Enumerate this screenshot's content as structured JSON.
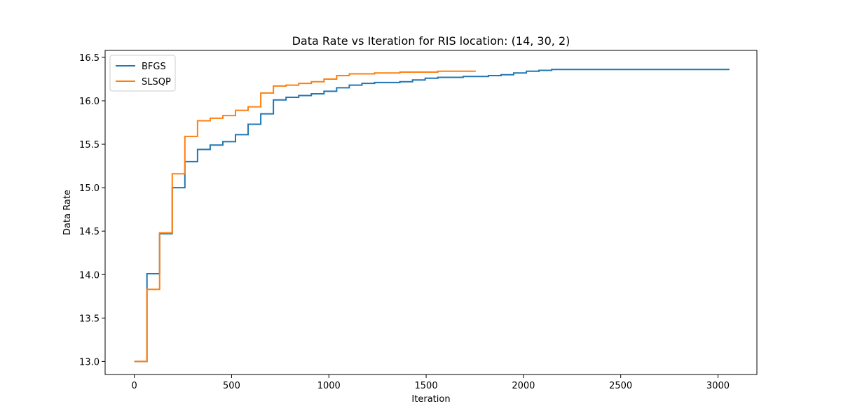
{
  "chart_data": {
    "type": "line",
    "title": "Data Rate vs Iteration for RIS location: (14, 30, 2)",
    "xlabel": "Iteration",
    "ylabel": "Data Rate",
    "xlim": [
      -150,
      3200
    ],
    "ylim": [
      12.85,
      16.58
    ],
    "xticks": [
      0,
      500,
      1000,
      1500,
      2000,
      2500,
      3000
    ],
    "yticks": [
      13.0,
      13.5,
      14.0,
      14.5,
      15.0,
      15.5,
      16.0,
      16.5
    ],
    "grid": false,
    "legend": "top-left",
    "step": "post",
    "series": [
      {
        "name": "BFGS",
        "color": "#1f77b4",
        "points": [
          [
            0,
            13.0
          ],
          [
            65,
            14.01
          ],
          [
            130,
            14.47
          ],
          [
            195,
            15.0
          ],
          [
            260,
            15.3
          ],
          [
            325,
            15.44
          ],
          [
            390,
            15.49
          ],
          [
            455,
            15.53
          ],
          [
            520,
            15.61
          ],
          [
            585,
            15.73
          ],
          [
            650,
            15.85
          ],
          [
            715,
            16.01
          ],
          [
            780,
            16.04
          ],
          [
            845,
            16.06
          ],
          [
            910,
            16.08
          ],
          [
            975,
            16.11
          ],
          [
            1040,
            16.15
          ],
          [
            1105,
            16.18
          ],
          [
            1170,
            16.2
          ],
          [
            1235,
            16.21
          ],
          [
            1300,
            16.21
          ],
          [
            1365,
            16.22
          ],
          [
            1430,
            16.24
          ],
          [
            1495,
            16.26
          ],
          [
            1560,
            16.27
          ],
          [
            1625,
            16.27
          ],
          [
            1690,
            16.28
          ],
          [
            1755,
            16.28
          ],
          [
            1820,
            16.29
          ],
          [
            1885,
            16.3
          ],
          [
            1950,
            16.32
          ],
          [
            2015,
            16.34
          ],
          [
            2080,
            16.35
          ],
          [
            2145,
            16.36
          ],
          [
            2500,
            16.36
          ],
          [
            3055,
            16.37
          ]
        ]
      },
      {
        "name": "SLSQP",
        "color": "#ff7f0e",
        "points": [
          [
            0,
            13.0
          ],
          [
            65,
            13.83
          ],
          [
            130,
            14.48
          ],
          [
            195,
            15.16
          ],
          [
            260,
            15.59
          ],
          [
            325,
            15.77
          ],
          [
            390,
            15.8
          ],
          [
            455,
            15.83
          ],
          [
            520,
            15.89
          ],
          [
            585,
            15.93
          ],
          [
            650,
            16.09
          ],
          [
            715,
            16.17
          ],
          [
            780,
            16.18
          ],
          [
            845,
            16.2
          ],
          [
            910,
            16.22
          ],
          [
            975,
            16.25
          ],
          [
            1040,
            16.29
          ],
          [
            1105,
            16.31
          ],
          [
            1170,
            16.31
          ],
          [
            1235,
            16.32
          ],
          [
            1300,
            16.32
          ],
          [
            1365,
            16.33
          ],
          [
            1430,
            16.33
          ],
          [
            1495,
            16.33
          ],
          [
            1560,
            16.34
          ],
          [
            1625,
            16.34
          ],
          [
            1690,
            16.34
          ],
          [
            1755,
            16.34
          ]
        ]
      }
    ]
  }
}
